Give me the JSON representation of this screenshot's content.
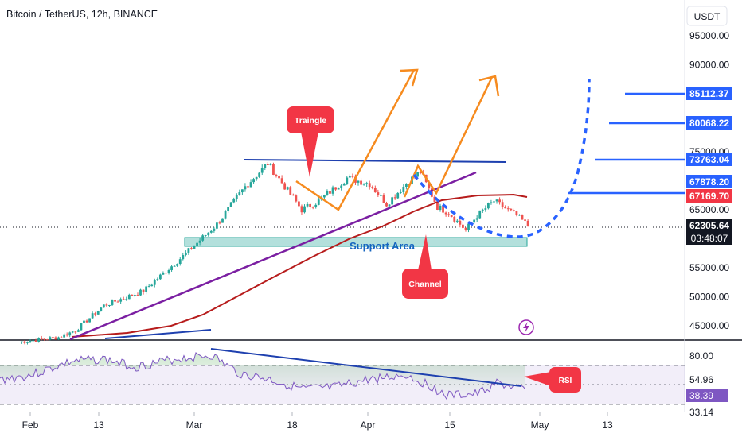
{
  "header": {
    "title": "Bitcoin / TetherUS, 12h, BINANCE",
    "currency": "USDT"
  },
  "chart_data": {
    "type": "line",
    "title": "Bitcoin / TetherUS, 12h, BINANCE",
    "x_ticks": [
      "Feb",
      "13",
      "Mar",
      "18",
      "Apr",
      "15",
      "May",
      "13"
    ],
    "price_ticks": [
      "95000.00",
      "90000.00",
      "75000.00",
      "65000.00",
      "55000.00",
      "50000.00",
      "45000.00"
    ],
    "price_range": [
      42000,
      98500
    ],
    "price_badges": [
      {
        "label": "85112.37",
        "value": 85112.37,
        "color": "#2962ff"
      },
      {
        "label": "80068.22",
        "value": 80068.22,
        "color": "#2962ff"
      },
      {
        "label": "73763.04",
        "value": 73763.04,
        "color": "#2962ff"
      },
      {
        "label": "67878.20",
        "value": 67878.2,
        "color": "#2962ff"
      },
      {
        "label": "67169.70",
        "value": 67169.7,
        "color": "#f23645"
      },
      {
        "label": "62305.64",
        "value": 62305.64,
        "color": "#131722"
      }
    ],
    "countdown": "03:48:07",
    "rsi_ticks": [
      "80.00",
      "54.96",
      "33.14"
    ],
    "rsi_value": "38.39",
    "series": [
      {
        "x": [
          "2024-01-30",
          "2024-02-06",
          "2024-02-09",
          "2024-02-14",
          "2024-02-21",
          "2024-02-28",
          "2024-03-05",
          "2024-03-10",
          "2024-03-14",
          "2024-03-20",
          "2024-03-23",
          "2024-03-28",
          "2024-04-01",
          "2024-04-04",
          "2024-04-08",
          "2024-04-10",
          "2024-04-13",
          "2024-04-15",
          "2024-04-18",
          "2024-04-20",
          "2024-04-23",
          "2024-04-27",
          "2024-04-29"
        ],
        "values": [
          42200,
          43000,
          44200,
          48500,
          51000,
          57000,
          62500,
          69000,
          73000,
          65000,
          66500,
          70500,
          69500,
          66000,
          70000,
          71500,
          65500,
          64500,
          61500,
          64000,
          66500,
          64000,
          62305
        ]
      }
    ],
    "annotations": [
      "Traingle",
      "Channel",
      "Support Area",
      "RSI"
    ],
    "colors": {
      "bull": "#26a69a",
      "bear": "#ef5350",
      "trend": "#7b1fa2",
      "ma": "#b71c1c",
      "forecast": "#f68b1f",
      "projection": "#2962ff",
      "label_red": "#f23645"
    }
  }
}
